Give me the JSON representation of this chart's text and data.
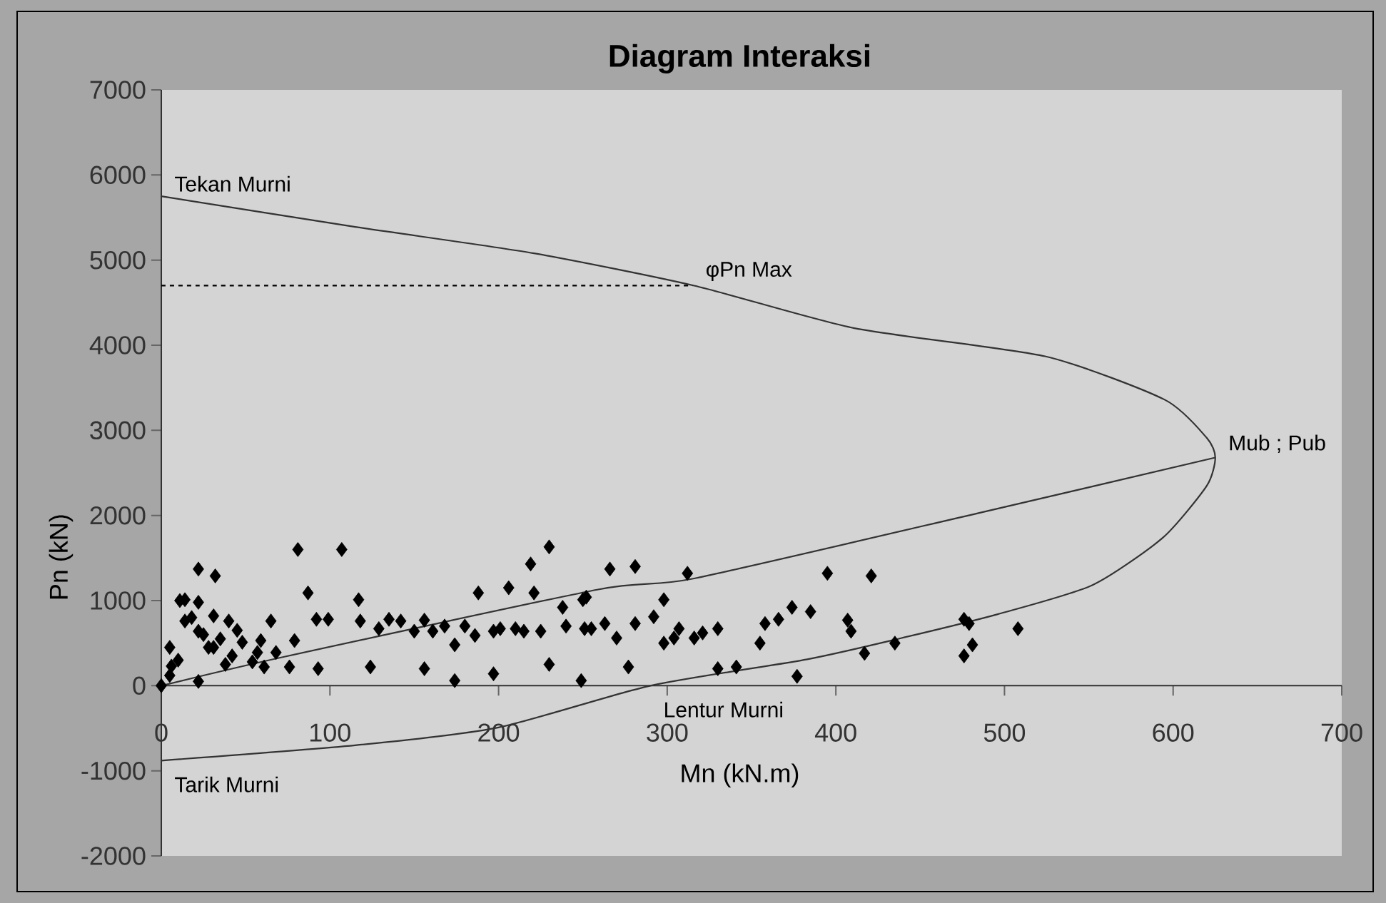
{
  "chart_data": {
    "type": "scatter",
    "title": "Diagram Interaksi",
    "xlabel": "Mn (kN.m)",
    "ylabel": "Pn  (kN)",
    "xlim": [
      0,
      700
    ],
    "ylim": [
      -2000,
      7000
    ],
    "xticks": [
      0,
      100,
      200,
      300,
      400,
      500,
      600,
      700
    ],
    "yticks": [
      -2000,
      -1000,
      0,
      1000,
      2000,
      3000,
      4000,
      5000,
      6000,
      7000
    ],
    "series": [
      {
        "type": "line",
        "color": "#333333",
        "x": [
          0,
          115,
          221,
          316,
          411,
          524,
          595,
          620,
          625,
          620,
          594,
          552,
          496,
          439,
          383,
          290,
          200,
          115,
          0
        ],
        "values": [
          5750,
          5390,
          5080,
          4700,
          4200,
          3870,
          3360,
          2910,
          2680,
          2350,
          1740,
          1180,
          840,
          560,
          310,
          0,
          -490,
          -700,
          -880
        ]
      },
      {
        "type": "line",
        "color": "#333333",
        "x": [
          0,
          73,
          259,
          316,
          485,
          625
        ],
        "values": [
          0,
          340,
          1130,
          1260,
          2030,
          2680
        ]
      },
      {
        "type": "line",
        "color": "#000000",
        "line_style": "dashed",
        "x": [
          0,
          315
        ],
        "values": [
          4700,
          4700
        ]
      },
      {
        "color": "#000000",
        "marker": "diamond",
        "x": [
          0,
          22,
          5,
          6,
          14,
          11,
          22,
          32,
          22,
          14,
          22,
          31,
          40,
          31,
          48,
          57,
          54,
          61,
          65,
          59,
          68,
          76,
          79,
          81,
          87,
          92,
          99,
          93,
          107,
          117,
          118,
          124,
          135,
          142,
          156,
          156,
          168,
          174,
          174,
          186,
          188,
          197,
          197,
          206,
          210,
          221,
          219,
          230,
          230,
          238,
          249,
          250,
          251,
          129,
          150,
          161,
          180,
          201,
          215,
          225,
          240,
          266,
          281,
          312,
          252,
          277,
          298,
          298,
          316,
          330,
          341,
          330,
          377,
          374,
          385,
          395,
          421,
          407,
          417,
          435,
          476,
          479,
          476,
          481,
          508,
          263,
          281,
          292,
          255,
          270,
          358,
          366,
          355,
          409,
          304,
          321,
          307,
          5,
          10,
          25,
          35,
          28,
          42,
          18,
          45,
          38
        ],
        "values": [
          0,
          50,
          450,
          230,
          1010,
          1000,
          1370,
          1290,
          980,
          760,
          640,
          820,
          760,
          450,
          510,
          390,
          280,
          220,
          760,
          530,
          390,
          220,
          530,
          1600,
          1090,
          780,
          780,
          200,
          1600,
          1010,
          760,
          220,
          780,
          760,
          770,
          200,
          700,
          480,
          60,
          590,
          1090,
          140,
          640,
          1150,
          670,
          1090,
          1430,
          1630,
          250,
          920,
          60,
          1010,
          670,
          670,
          640,
          640,
          700,
          670,
          640,
          640,
          700,
          1370,
          1400,
          1320,
          1040,
          220,
          1010,
          500,
          560,
          200,
          220,
          670,
          110,
          920,
          870,
          1320,
          1290,
          770,
          380,
          500,
          780,
          730,
          350,
          480,
          670,
          730,
          730,
          810,
          670,
          560,
          730,
          780,
          500,
          640,
          560,
          620,
          670,
          120,
          300,
          600,
          550,
          450,
          350,
          800,
          650,
          250
        ]
      }
    ],
    "annotations": [
      {
        "text": "Tekan Murni",
        "x": 0,
        "y": 5750
      },
      {
        "text": "φPn Max",
        "x": 315,
        "y": 4700
      },
      {
        "text": "Mub ; Pub",
        "x": 625,
        "y": 2680
      },
      {
        "text": "Lentur Murni",
        "x": 290,
        "y": 0
      },
      {
        "text": "Tarik Murni",
        "x": 0,
        "y": -880
      }
    ]
  }
}
